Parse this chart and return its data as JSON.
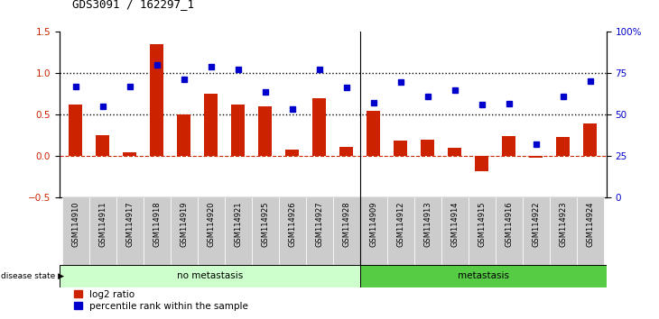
{
  "title": "GDS3091 / 162297_1",
  "samples": [
    "GSM114910",
    "GSM114911",
    "GSM114917",
    "GSM114918",
    "GSM114919",
    "GSM114920",
    "GSM114921",
    "GSM114925",
    "GSM114926",
    "GSM114927",
    "GSM114928",
    "GSM114909",
    "GSM114912",
    "GSM114913",
    "GSM114914",
    "GSM114915",
    "GSM114916",
    "GSM114922",
    "GSM114923",
    "GSM114924"
  ],
  "log2_ratio": [
    0.62,
    0.26,
    0.05,
    1.35,
    0.5,
    0.75,
    0.62,
    0.6,
    0.08,
    0.7,
    0.11,
    0.55,
    0.19,
    0.2,
    0.1,
    -0.18,
    0.24,
    -0.02,
    0.23,
    0.4
  ],
  "percentile_rank": [
    0.84,
    0.6,
    0.84,
    1.1,
    0.93,
    1.08,
    1.05,
    0.78,
    0.57,
    1.05,
    0.83,
    0.65,
    0.9,
    0.72,
    0.8,
    0.62,
    0.63,
    0.15,
    0.72,
    0.91
  ],
  "no_metastasis_count": 11,
  "metastasis_count": 9,
  "bar_color": "#CC2200",
  "dot_color": "#0000CC",
  "dotted_line_y": [
    0.5,
    1.0
  ],
  "zero_line_color": "#CC2200",
  "ylim_left": [
    -0.5,
    1.5
  ],
  "ylim_right": [
    0,
    100
  ],
  "yticks_left": [
    -0.5,
    0.0,
    0.5,
    1.0,
    1.5
  ],
  "yticks_right": [
    0,
    25,
    50,
    75,
    100
  ],
  "ytick_labels_right": [
    "0",
    "25",
    "50",
    "75",
    "100%"
  ],
  "no_metastasis_color": "#CCFFCC",
  "metastasis_color": "#55CC44",
  "disease_state_bg": "#DDDDDD"
}
